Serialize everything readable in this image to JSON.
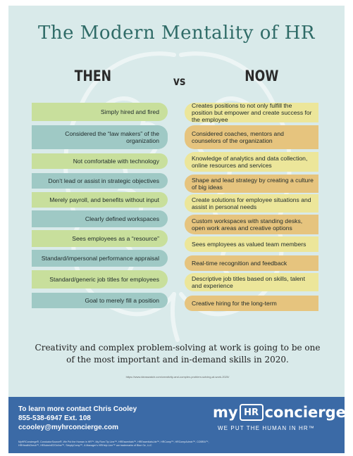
{
  "title": "The Modern Mentality of HR",
  "headers": {
    "then": "THEN",
    "vs": "vs",
    "now": "NOW"
  },
  "rows": [
    {
      "then": "Simply hired and fired",
      "now": "Creates positions to not only fulfill the position but empower and create success for the employee"
    },
    {
      "then": "Considered the “law makers” of the organization",
      "now": "Considered coaches, mentors and counselors of the organization"
    },
    {
      "then": "Not comfortable with technology",
      "now": "Knowledge of analytics and data collection, online resources and services"
    },
    {
      "then": "Don’t lead or assist in strategic objectives",
      "now": "Shape and lead strategy by creating a culture of big ideas"
    },
    {
      "then": "Merely payroll, and benefits without input",
      "now": "Create solutions for employee situations and assist in personal needs"
    },
    {
      "then": "Clearly defined workspaces",
      "now": "Custom workspaces with standing desks, open work areas and creative options"
    },
    {
      "then": "Sees employees as a “resource”",
      "now": "Sees employees as valued team members"
    },
    {
      "then": "Standard/impersonal performance appraisal",
      "now": "Real-time recognition and feedback"
    },
    {
      "then": "Standard/generic job titles for employees",
      "now": "Descriptive job titles based on skills, talent and experience"
    },
    {
      "then": "Goal to merely fill a position",
      "now": "Creative hiring for the long-term"
    }
  ],
  "tagline": "Creativity and complex problem-solving at work is going to be one of the most important and in-demand skills in 2020.",
  "source": "https://www.ideaswatch.com/creativity-and-complex-problem-solving-at-work-2020/",
  "footer": {
    "contact_line": "To learn more contact Chris Cooley",
    "phone": "855-538-6947 Ext. 108",
    "email": "ccooley@myhrconcierge.com",
    "logo_my": "my",
    "logo_hr": "HR",
    "logo_concierge": "concierge",
    "logo_tagline": "WE PUT THE HUMAN IN HR™",
    "legal": "MyHRConcierge®, ConductorSource®, We Put the Human in HR™, My Rom Tip Line™, HREssentials™, HREssentialsLite™, HRComp™, HRCompAdmin™, COBRA™, HRHealthCheck™, HRAdminEZOnline™, SimplyComp™, A Manager's HRHelp Line™ are trademarks of Blue Oz, LLC"
  },
  "colors": {
    "background": "#d9eaea",
    "title": "#2f6b67",
    "then_green": "#c8df9c",
    "then_teal": "#9fc9c5",
    "now_yellow": "#ece69a",
    "now_orange": "#e6c47e",
    "footer": "#3b6aa6"
  }
}
